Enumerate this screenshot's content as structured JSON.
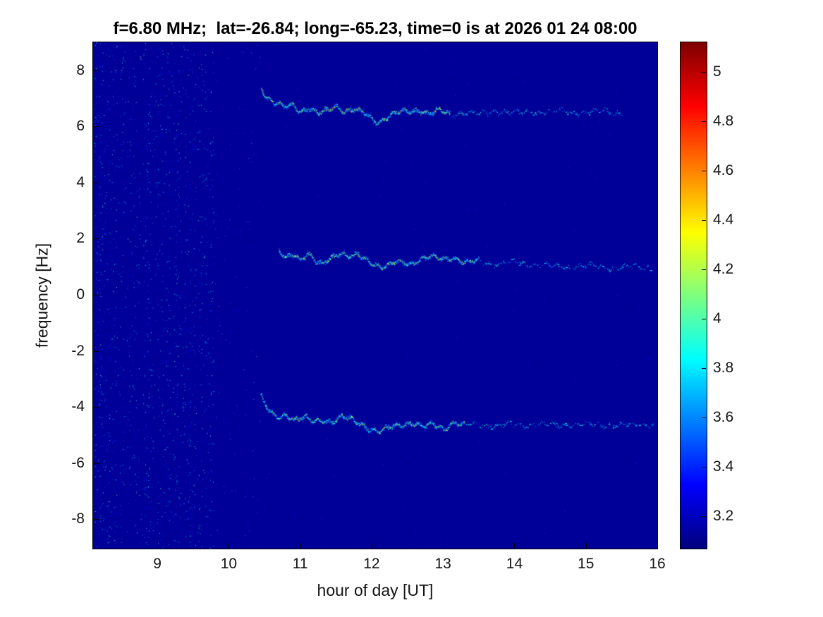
{
  "chart_data": {
    "type": "heatmap",
    "title": "f=6.80 MHz;  lat=-26.84; long=-65.23, time=0 is at 2026 01 24 08:00",
    "xlabel": "hour of day [UT]",
    "ylabel": "frequency [Hz]",
    "xlim": [
      8.1,
      16.0
    ],
    "ylim": [
      -9.05,
      9.0
    ],
    "grid": false,
    "x_ticks": {
      "values": [
        9,
        10,
        11,
        12,
        13,
        14,
        15,
        16
      ],
      "labels": [
        "9",
        "10",
        "11",
        "12",
        "13",
        "14",
        "15",
        "16"
      ]
    },
    "y_ticks": {
      "values": [
        -8,
        -6,
        -4,
        -2,
        0,
        2,
        4,
        6,
        8
      ],
      "labels": [
        "-8",
        "-6",
        "-4",
        "-2",
        "0",
        "2",
        "4",
        "6",
        "8"
      ]
    },
    "colorbar": {
      "colormap": "jet",
      "position": "right",
      "range": [
        3.07,
        5.12
      ],
      "tick_values": [
        3.2,
        3.4,
        3.6,
        3.8,
        4,
        4.2,
        4.4,
        4.6,
        4.8,
        5
      ],
      "tick_labels": [
        "3.2",
        "3.4",
        "3.6",
        "3.8",
        "4",
        "4.2",
        "4.4",
        "4.6",
        "4.8",
        "5"
      ]
    },
    "background_value": 3.12,
    "noise_region": {
      "x_range": [
        8.13,
        9.78
      ],
      "sparse_tail_until": 10.45,
      "value_range": [
        3.15,
        4.0
      ],
      "description": "speckle noise in faint vertical bands before signal onset"
    },
    "series": [
      {
        "name": "doppler-trace-upper",
        "dense_until": 13.1,
        "value_range": [
          3.55,
          4.6
        ],
        "x": [
          10.45,
          10.52,
          10.62,
          10.75,
          10.9,
          11.0,
          11.12,
          11.25,
          11.38,
          11.5,
          11.62,
          11.75,
          11.88,
          12.0,
          12.1,
          12.22,
          12.35,
          12.5,
          12.65,
          12.8,
          12.95,
          13.1,
          13.3,
          13.5,
          13.75,
          14.0,
          14.3,
          14.6,
          14.9,
          15.2,
          15.5
        ],
        "y": [
          7.4,
          7.05,
          6.85,
          6.7,
          6.8,
          6.55,
          6.65,
          6.45,
          6.6,
          6.75,
          6.55,
          6.6,
          6.5,
          6.3,
          6.15,
          6.35,
          6.5,
          6.55,
          6.62,
          6.45,
          6.58,
          6.42,
          6.52,
          6.45,
          6.55,
          6.48,
          6.52,
          6.55,
          6.5,
          6.55,
          6.5
        ]
      },
      {
        "name": "doppler-trace-middle",
        "dense_until": 13.5,
        "value_range": [
          3.55,
          4.5
        ],
        "x": [
          10.7,
          10.8,
          10.9,
          11.0,
          11.1,
          11.2,
          11.3,
          11.42,
          11.55,
          11.68,
          11.8,
          11.92,
          12.05,
          12.15,
          12.28,
          12.4,
          12.55,
          12.7,
          12.85,
          13.0,
          13.15,
          13.3,
          13.5,
          13.7,
          13.9,
          14.15,
          14.45,
          14.75,
          15.05,
          15.35,
          15.65,
          15.92
        ],
        "y": [
          1.55,
          1.35,
          1.5,
          1.25,
          1.45,
          1.2,
          1.1,
          1.35,
          1.5,
          1.35,
          1.42,
          1.28,
          1.1,
          0.95,
          1.1,
          1.2,
          1.12,
          1.3,
          1.35,
          1.28,
          1.35,
          1.15,
          1.22,
          1.1,
          1.18,
          1.1,
          1.05,
          1.0,
          1.05,
          0.95,
          1.0,
          0.95
        ]
      },
      {
        "name": "doppler-trace-lower",
        "dense_until": 13.3,
        "value_range": [
          3.55,
          4.5
        ],
        "x": [
          10.45,
          10.5,
          10.58,
          10.68,
          10.8,
          10.92,
          11.05,
          11.18,
          11.3,
          11.45,
          11.58,
          11.72,
          11.85,
          12.0,
          12.1,
          12.25,
          12.4,
          12.55,
          12.7,
          12.85,
          13.0,
          13.15,
          13.3,
          13.5,
          13.7,
          13.95,
          14.2,
          14.5,
          14.8,
          15.1,
          15.4,
          15.7,
          15.95
        ],
        "y": [
          -3.6,
          -3.9,
          -4.2,
          -4.35,
          -4.25,
          -4.45,
          -4.38,
          -4.5,
          -4.45,
          -4.52,
          -4.35,
          -4.45,
          -4.6,
          -4.8,
          -4.9,
          -4.72,
          -4.62,
          -4.55,
          -4.7,
          -4.6,
          -4.75,
          -4.55,
          -4.65,
          -4.6,
          -4.7,
          -4.6,
          -4.65,
          -4.6,
          -4.65,
          -4.6,
          -4.65,
          -4.6,
          -4.65
        ]
      }
    ]
  }
}
